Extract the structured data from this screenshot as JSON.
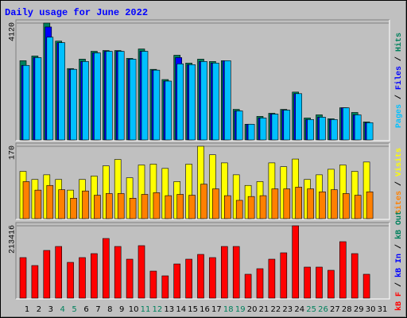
{
  "chart_data": [
    {
      "type": "bar",
      "title": "Daily usage for June 2022",
      "ylim": [
        0,
        4120
      ],
      "yticks": [
        4120
      ],
      "series": [
        {
          "name": "Pages",
          "color": "#00c0ff",
          "values": [
            2627,
            2903,
            3622,
            3429,
            2489,
            2765,
            3069,
            3125,
            3125,
            2848,
            3125,
            2461,
            2074,
            2682,
            2654,
            2765,
            2710,
            2793,
            1023,
            553,
            774,
            912,
            1051,
            1631,
            719,
            802,
            719,
            1134,
            885,
            608,
            null
          ]
        },
        {
          "name": "Files",
          "color": "#0000ff",
          "values": [
            2627,
            2903,
            3982,
            3429,
            2489,
            2765,
            3069,
            3125,
            3125,
            2848,
            3125,
            2461,
            2074,
            2903,
            2654,
            2765,
            2710,
            2793,
            1023,
            553,
            774,
            912,
            1051,
            1631,
            719,
            802,
            719,
            1134,
            885,
            608,
            null
          ]
        },
        {
          "name": "Hits",
          "color": "#00805c",
          "values": [
            2793,
            2959,
            4120,
            3484,
            2516,
            2848,
            3125,
            3152,
            3152,
            2876,
            3207,
            2489,
            2129,
            2986,
            2710,
            2848,
            2765,
            2793,
            1078,
            553,
            830,
            940,
            1078,
            1687,
            774,
            885,
            747,
            1134,
            968,
            636,
            null
          ]
        }
      ]
    },
    {
      "type": "bar",
      "ylim": [
        0,
        170
      ],
      "yticks": [
        170
      ],
      "series": [
        {
          "name": "Sites",
          "color": "#ff8000",
          "values": [
            87,
            67,
            78,
            68,
            48,
            65,
            55,
            59,
            59,
            48,
            57,
            61,
            54,
            57,
            55,
            81,
            70,
            54,
            43,
            52,
            54,
            70,
            70,
            74,
            70,
            63,
            68,
            59,
            55,
            63,
            null
          ]
        },
        {
          "name": "Visits",
          "color": "#ffff00",
          "values": [
            111,
            92,
            103,
            92,
            67,
            92,
            100,
            124,
            139,
            96,
            126,
            128,
            118,
            87,
            128,
            170,
            150,
            131,
            103,
            78,
            87,
            131,
            122,
            140,
            92,
            103,
            116,
            126,
            111,
            133,
            null
          ]
        }
      ]
    },
    {
      "type": "bar",
      "ylim": [
        0,
        213416
      ],
      "yticks": [
        213416
      ],
      "categories": [
        "1",
        "2",
        "3",
        "4",
        "5",
        "6",
        "7",
        "8",
        "9",
        "10",
        "11",
        "12",
        "13",
        "14",
        "15",
        "16",
        "17",
        "18",
        "19",
        "20",
        "21",
        "22",
        "23",
        "24",
        "25",
        "26",
        "27",
        "28",
        "29",
        "30",
        "31"
      ],
      "category_colors": [
        "#000000",
        "#000000",
        "#000000",
        "#00805c",
        "#00805c",
        "#000000",
        "#000000",
        "#000000",
        "#000000",
        "#000000",
        "#00805c",
        "#00805c",
        "#000000",
        "#000000",
        "#000000",
        "#000000",
        "#000000",
        "#00805c",
        "#00805c",
        "#000000",
        "#000000",
        "#000000",
        "#000000",
        "#000000",
        "#00805c",
        "#00805c",
        "#000000",
        "#000000",
        "#000000",
        "#000000",
        "#000000"
      ],
      "series": [
        {
          "name": "kB F",
          "color": "#ff0000",
          "values": [
            119600,
            96150,
            140700,
            152400,
            105500,
            119600,
            131300,
            175900,
            152400,
            114900,
            154800,
            79700,
            65700,
            100800,
            114900,
            129000,
            119600,
            152400,
            152400,
            70400,
            86800,
            114900,
            133700,
            213416,
            91500,
            91500,
            82100,
            166500,
            131300,
            70400,
            null
          ]
        },
        {
          "name": "kB In",
          "color": "#0000ff"
        },
        {
          "name": "kB Out",
          "color": "#00805c"
        }
      ]
    }
  ]
}
